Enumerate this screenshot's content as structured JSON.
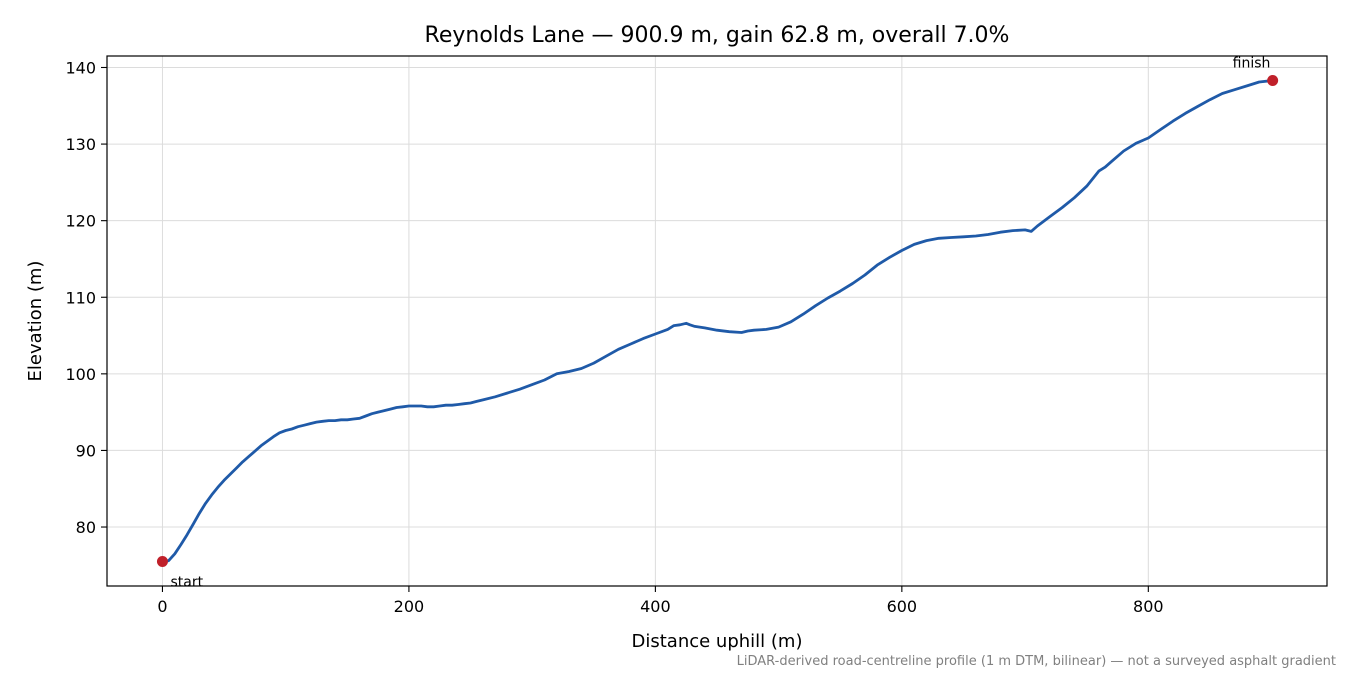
{
  "chart_data": {
    "type": "line",
    "title": "Reynolds Lane — 900.9 m, gain 62.8 m, overall 7.0%",
    "xlabel": "Distance uphill (m)",
    "ylabel": "Elevation (m)",
    "xlim": [
      -45,
      945
    ],
    "ylim": [
      72.3,
      141.5
    ],
    "xticks": [
      0,
      200,
      400,
      600,
      800
    ],
    "yticks": [
      80,
      90,
      100,
      110,
      120,
      130,
      140
    ],
    "grid": true,
    "series_color": "#1f5aa8",
    "marker_color": "#c0202a",
    "series": [
      {
        "x": [
          0,
          5,
          10,
          15,
          20,
          25,
          30,
          35,
          40,
          45,
          50,
          55,
          60,
          65,
          70,
          75,
          80,
          85,
          90,
          95,
          100,
          105,
          110,
          115,
          120,
          125,
          130,
          135,
          140,
          145,
          150,
          155,
          160,
          165,
          170,
          175,
          180,
          185,
          190,
          195,
          200,
          205,
          210,
          215,
          220,
          225,
          230,
          235,
          240,
          245,
          250,
          255,
          260,
          270,
          280,
          290,
          300,
          310,
          320,
          330,
          340,
          350,
          360,
          370,
          380,
          390,
          400,
          410,
          415,
          420,
          425,
          428,
          432,
          440,
          450,
          460,
          470,
          475,
          480,
          490,
          500,
          510,
          520,
          530,
          540,
          550,
          560,
          570,
          580,
          590,
          600,
          610,
          620,
          630,
          640,
          650,
          660,
          670,
          680,
          690,
          700,
          705,
          710,
          720,
          730,
          740,
          750,
          760,
          765,
          770,
          780,
          790,
          800,
          810,
          820,
          830,
          840,
          850,
          860,
          870,
          880,
          890,
          900.9
        ],
        "y": [
          75.5,
          75.6,
          76.5,
          77.7,
          79.0,
          80.4,
          81.8,
          83.1,
          84.2,
          85.2,
          86.1,
          86.9,
          87.7,
          88.5,
          89.2,
          89.9,
          90.6,
          91.2,
          91.8,
          92.3,
          92.6,
          92.8,
          93.1,
          93.3,
          93.5,
          93.7,
          93.8,
          93.9,
          93.9,
          94.0,
          94.0,
          94.1,
          94.2,
          94.5,
          94.8,
          95.0,
          95.2,
          95.4,
          95.6,
          95.7,
          95.8,
          95.8,
          95.8,
          95.7,
          95.7,
          95.8,
          95.9,
          95.9,
          96.0,
          96.1,
          96.2,
          96.4,
          96.6,
          97.0,
          97.5,
          98.0,
          98.6,
          99.2,
          100.0,
          100.3,
          100.7,
          101.4,
          102.3,
          103.2,
          103.9,
          104.6,
          105.2,
          105.8,
          106.3,
          106.4,
          106.6,
          106.4,
          106.2,
          106.0,
          105.7,
          105.5,
          105.4,
          105.6,
          105.7,
          105.8,
          106.1,
          106.8,
          107.8,
          108.9,
          109.9,
          110.8,
          111.8,
          112.9,
          114.2,
          115.2,
          116.1,
          116.9,
          117.4,
          117.7,
          117.8,
          117.9,
          118.0,
          118.2,
          118.5,
          118.7,
          118.8,
          118.6,
          119.3,
          120.5,
          121.7,
          123.0,
          124.5,
          126.5,
          127.0,
          127.7,
          129.1,
          130.1,
          130.8,
          131.9,
          133.0,
          134.0,
          134.9,
          135.8,
          136.6,
          137.1,
          137.6,
          138.1,
          138.3
        ]
      }
    ],
    "annotations": [
      {
        "text": "start",
        "x": 0,
        "y": 75.5
      },
      {
        "text": "finish",
        "x": 900.9,
        "y": 138.3
      }
    ],
    "footnote": "LiDAR-derived road-centreline profile (1 m DTM, bilinear) — not a surveyed asphalt gradient"
  }
}
